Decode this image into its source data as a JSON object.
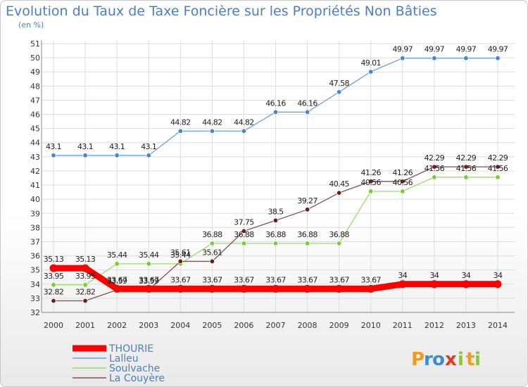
{
  "chart_data": {
    "type": "line",
    "title": "Evolution du Taux de Taxe Foncière sur les Propriétés Non Bâties",
    "unit_label": "(en %)",
    "x": [
      "2000",
      "2001",
      "2002",
      "2003",
      "2004",
      "2005",
      "2006",
      "2007",
      "2008",
      "2009",
      "2010",
      "2011",
      "2012",
      "2013",
      "2014"
    ],
    "ylim": [
      32,
      51
    ],
    "yticks": [
      32,
      33,
      34,
      35,
      36,
      37,
      38,
      39,
      40,
      41,
      42,
      43,
      44,
      45,
      46,
      47,
      48,
      49,
      50,
      51
    ],
    "grid": true,
    "legend_position": "bottom-left",
    "series": [
      {
        "name": "THOURIE",
        "color": "#ff0000",
        "thick": true,
        "values": [
          35.13,
          35.13,
          33.67,
          33.67,
          33.67,
          33.67,
          33.67,
          33.67,
          33.67,
          33.67,
          33.67,
          34,
          34,
          34,
          34
        ],
        "labels": [
          "35.13",
          "35.13",
          "33.67",
          "33.67",
          "33.67",
          "33.67",
          "33.67",
          "33.67",
          "33.67",
          "33.67",
          "33.67",
          "34",
          "34",
          "34",
          "34"
        ]
      },
      {
        "name": "Lalleu",
        "color": "#6fa0d8",
        "marker": "#4a86cc",
        "values": [
          43.1,
          43.1,
          43.1,
          43.1,
          44.82,
          44.82,
          44.82,
          46.16,
          46.16,
          47.58,
          49.01,
          49.97,
          49.97,
          49.97,
          49.97
        ],
        "labels": [
          "43.1",
          "43.1",
          "43.1",
          "43.1",
          "44.82",
          "44.82",
          "44.82",
          "46.16",
          "46.16",
          "47.58",
          "49.01",
          "49.97",
          "49.97",
          "49.97",
          "49.97"
        ]
      },
      {
        "name": "Soulvache",
        "color": "#99dd66",
        "marker": "#7acc33",
        "values": [
          33.95,
          33.95,
          35.44,
          35.44,
          35.44,
          36.88,
          36.88,
          36.88,
          36.88,
          36.88,
          40.56,
          40.56,
          41.56,
          41.56,
          41.56
        ],
        "labels": [
          "33.95",
          "33.95",
          "35.44",
          "35.44",
          "35.44",
          "36.88",
          "36.88",
          "36.88",
          "36.88",
          "36.88",
          "40.56",
          "40.56",
          "41.56",
          "41.56",
          "41.56"
        ]
      },
      {
        "name": "La Couyère",
        "color": "#8b4a4a",
        "marker": "#6b1f1f",
        "values": [
          32.82,
          32.82,
          33.59,
          33.59,
          35.61,
          35.61,
          37.75,
          38.5,
          39.27,
          40.45,
          41.26,
          41.26,
          42.29,
          42.29,
          42.29
        ],
        "labels": [
          "32.82",
          "32.82",
          "33.59",
          "33.59",
          "35.61",
          "35.61",
          "37.75",
          "38.5",
          "39.27",
          "40.45",
          "41.26",
          "41.26",
          "42.29",
          "42.29",
          "42.29"
        ]
      }
    ]
  },
  "logo": {
    "text": "Proxiti",
    "letters": [
      "P",
      "r",
      "o",
      "x",
      "i",
      "t",
      "i"
    ]
  },
  "colors": {
    "title": "#4a7fc0",
    "grid": "#dddddd",
    "axis": "#888888"
  }
}
